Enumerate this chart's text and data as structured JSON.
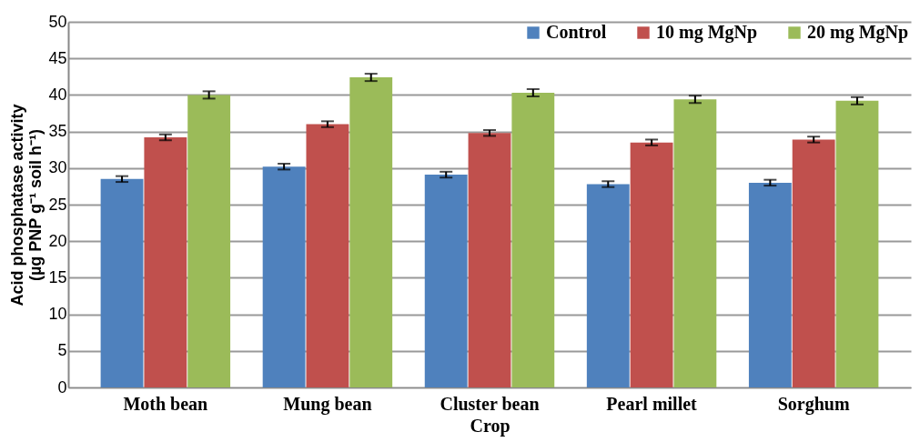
{
  "chart_data": {
    "type": "bar",
    "xlabel": "Crop",
    "ylabel": "Acid phosphatase activity\n(µg PNP g⁻¹ soil h⁻¹)",
    "categories": [
      "Moth bean",
      "Mung bean",
      "Cluster bean",
      "Pearl millet",
      "Sorghum"
    ],
    "series": [
      {
        "name": "Control",
        "color": "#4f81bd",
        "values": [
          28.5,
          30.2,
          29.1,
          27.8,
          28.0
        ],
        "errors": [
          0.4,
          0.4,
          0.4,
          0.4,
          0.4
        ]
      },
      {
        "name": "10 mg MgNp",
        "color": "#c0504d",
        "values": [
          34.2,
          36.0,
          34.8,
          33.5,
          33.9
        ],
        "errors": [
          0.4,
          0.4,
          0.4,
          0.4,
          0.4
        ]
      },
      {
        "name": "20 mg MgNp",
        "color": "#9bbb59",
        "values": [
          40.0,
          42.4,
          40.3,
          39.4,
          39.2
        ],
        "errors": [
          0.5,
          0.5,
          0.5,
          0.5,
          0.5
        ]
      }
    ],
    "ylim": [
      0,
      50
    ],
    "yticks": [
      0,
      5,
      10,
      15,
      20,
      25,
      30,
      35,
      40,
      45,
      50
    ],
    "grid": "y",
    "legend": "top right"
  }
}
